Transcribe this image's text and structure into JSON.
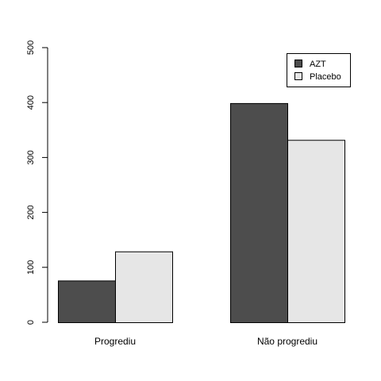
{
  "chart_data": {
    "type": "bar",
    "categories": [
      "Progrediu",
      "Não progrediu"
    ],
    "series": [
      {
        "name": "AZT",
        "values": [
          76,
          399
        ],
        "color": "#4d4d4d"
      },
      {
        "name": "Placebo",
        "values": [
          129,
          332
        ],
        "color": "#e6e6e6"
      }
    ],
    "title": "",
    "xlabel": "",
    "ylabel": "",
    "ylim": [
      0,
      500
    ],
    "yticks": [
      0,
      100,
      200,
      300,
      400,
      500
    ],
    "grid": false,
    "legend_position": "top-right"
  }
}
